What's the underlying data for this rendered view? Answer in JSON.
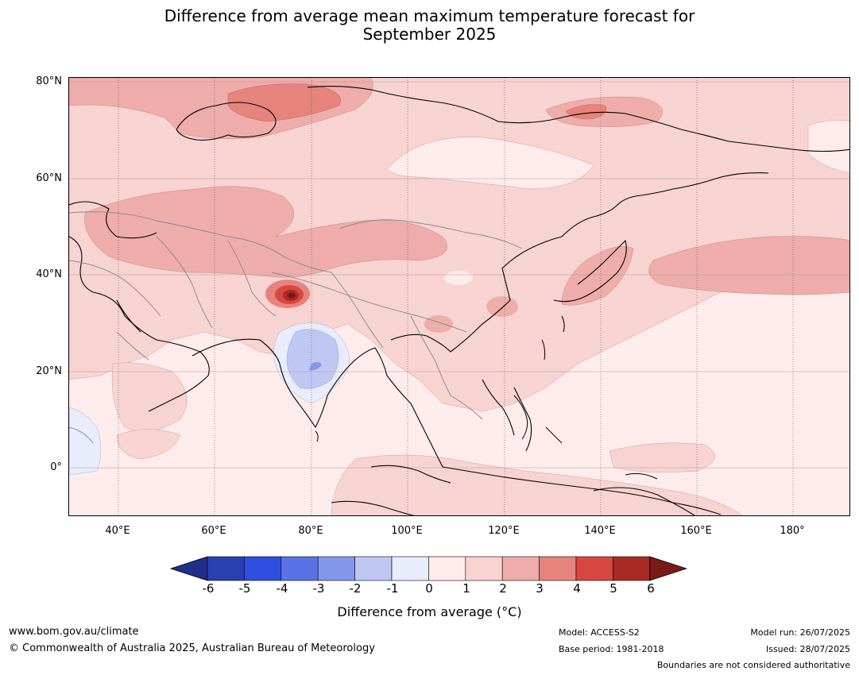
{
  "title": {
    "line1": "Difference from average mean maximum temperature forecast for",
    "line2": "September 2025"
  },
  "map": {
    "lat_labels": [
      "80°N",
      "60°N",
      "40°N",
      "20°N",
      "0°"
    ],
    "lon_labels": [
      "40°E",
      "60°E",
      "80°E",
      "100°E",
      "120°E",
      "140°E",
      "160°E",
      "180°"
    ],
    "dominant_anomaly_range": "0 to 2"
  },
  "colorbar": {
    "ticks": [
      "-6",
      "-5",
      "-4",
      "-3",
      "-2",
      "-1",
      "0",
      "1",
      "2",
      "3",
      "4",
      "5",
      "6"
    ],
    "colors": [
      "#1f2f8a",
      "#2a3fb0",
      "#2f4fe0",
      "#5a73e4",
      "#8597ea",
      "#bfc8f3",
      "#e8ecfb",
      "#fdeceb",
      "#f7d3d1",
      "#eeadaa",
      "#e6837d",
      "#d74841",
      "#a82a25",
      "#7a1a17"
    ],
    "label": "Difference from average (°C)"
  },
  "footer": {
    "url": "www.bom.gov.au/climate",
    "copyright": "© Commonwealth of Australia 2025, Australian Bureau of Meteorology",
    "model": "Model: ACCESS-S2",
    "base_period": "Base period: 1981-2018",
    "model_run": "Model run: 26/07/2025",
    "issued": "Issued: 28/07/2025",
    "disclaimer": "Boundaries are not considered authoritative"
  }
}
